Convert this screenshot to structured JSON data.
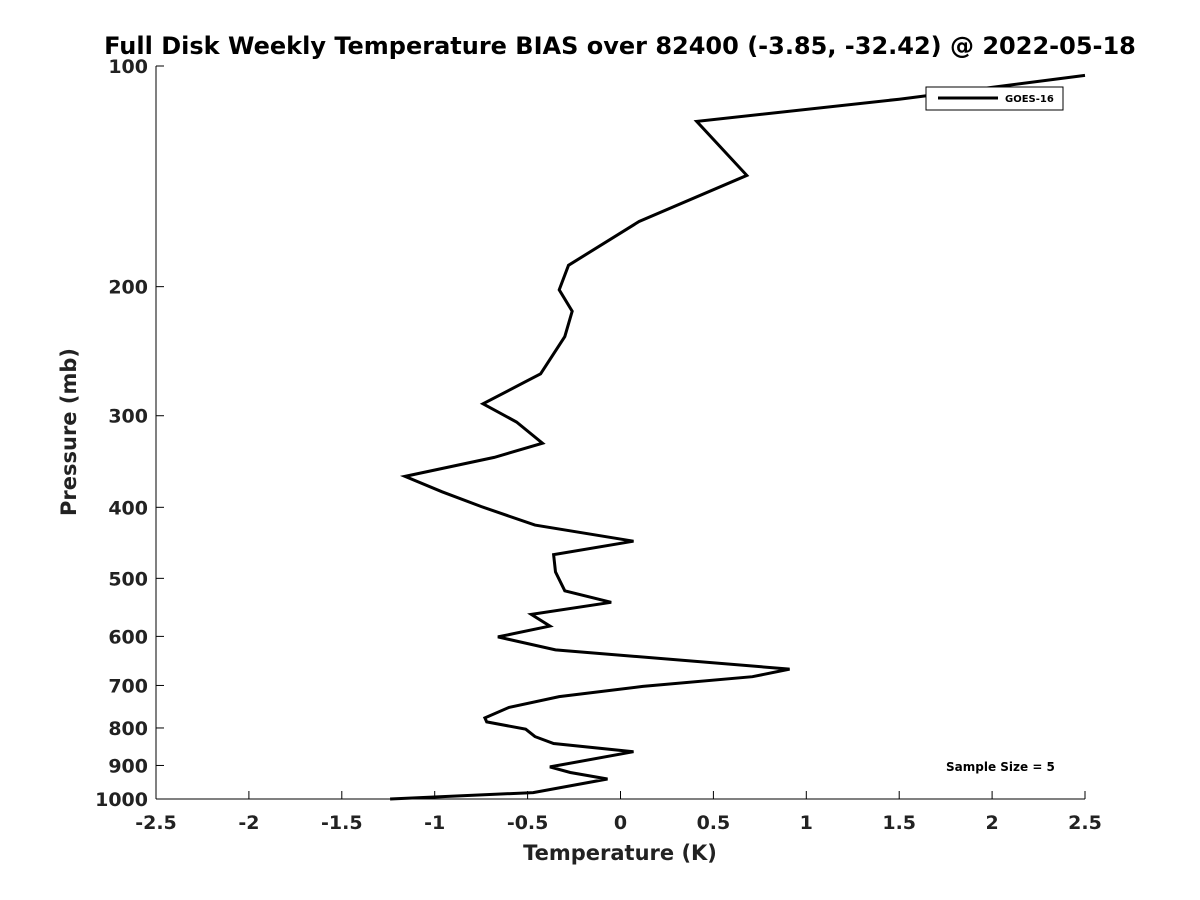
{
  "chart_data": {
    "type": "line",
    "title": "Full Disk Weekly Temperature BIAS over 82400 (-3.85, -32.42) @ 2022-05-18",
    "xlabel": "Temperature (K)",
    "ylabel": "Pressure (mb)",
    "xlim": [
      -2.5,
      2.5
    ],
    "ylim": [
      1000,
      100
    ],
    "yscale": "log",
    "xticks": [
      -2.5,
      -2,
      -1.5,
      -1,
      -0.5,
      0,
      0.5,
      1,
      1.5,
      2,
      2.5
    ],
    "xtick_labels": [
      "-2.5",
      "-2",
      "-1.5",
      "-1",
      "-0.5",
      "0",
      "0.5",
      "1",
      "1.5",
      "2",
      "2.5"
    ],
    "yticks": [
      100,
      200,
      300,
      400,
      500,
      600,
      700,
      800,
      900,
      1000
    ],
    "ytick_labels": [
      "100",
      "200",
      "300",
      "400",
      "500",
      "600",
      "700",
      "800",
      "900",
      "1000"
    ],
    "grid": false,
    "legend": {
      "position": "top-right",
      "entries": [
        "GOES-16"
      ]
    },
    "annotation": "Sample Size = 5",
    "series": [
      {
        "name": "GOES-16",
        "color": "#000000",
        "points": [
          {
            "x": 2.5,
            "y": 103
          },
          {
            "x": 1.5,
            "y": 111
          },
          {
            "x": 0.41,
            "y": 119
          },
          {
            "x": 0.68,
            "y": 141
          },
          {
            "x": 0.1,
            "y": 163
          },
          {
            "x": -0.28,
            "y": 187
          },
          {
            "x": -0.33,
            "y": 202
          },
          {
            "x": -0.26,
            "y": 216
          },
          {
            "x": -0.3,
            "y": 234
          },
          {
            "x": -0.43,
            "y": 263
          },
          {
            "x": -0.74,
            "y": 289
          },
          {
            "x": -0.56,
            "y": 306
          },
          {
            "x": -0.42,
            "y": 327
          },
          {
            "x": -0.68,
            "y": 342
          },
          {
            "x": -1.16,
            "y": 363
          },
          {
            "x": -0.96,
            "y": 381
          },
          {
            "x": -0.75,
            "y": 399
          },
          {
            "x": -0.46,
            "y": 423
          },
          {
            "x": 0.07,
            "y": 445
          },
          {
            "x": -0.36,
            "y": 464
          },
          {
            "x": -0.35,
            "y": 490
          },
          {
            "x": -0.3,
            "y": 520
          },
          {
            "x": -0.05,
            "y": 539
          },
          {
            "x": -0.48,
            "y": 560
          },
          {
            "x": -0.38,
            "y": 581
          },
          {
            "x": -0.66,
            "y": 601
          },
          {
            "x": -0.35,
            "y": 626
          },
          {
            "x": 0.91,
            "y": 665
          },
          {
            "x": 0.71,
            "y": 681
          },
          {
            "x": 0.12,
            "y": 702
          },
          {
            "x": -0.33,
            "y": 725
          },
          {
            "x": -0.6,
            "y": 750
          },
          {
            "x": -0.73,
            "y": 775
          },
          {
            "x": -0.72,
            "y": 785
          },
          {
            "x": -0.51,
            "y": 803
          },
          {
            "x": -0.46,
            "y": 822
          },
          {
            "x": -0.36,
            "y": 840
          },
          {
            "x": 0.07,
            "y": 862
          },
          {
            "x": -0.38,
            "y": 904
          },
          {
            "x": -0.27,
            "y": 920
          },
          {
            "x": -0.07,
            "y": 939
          },
          {
            "x": -0.47,
            "y": 980
          },
          {
            "x": -1.24,
            "y": 1000
          }
        ]
      }
    ]
  }
}
